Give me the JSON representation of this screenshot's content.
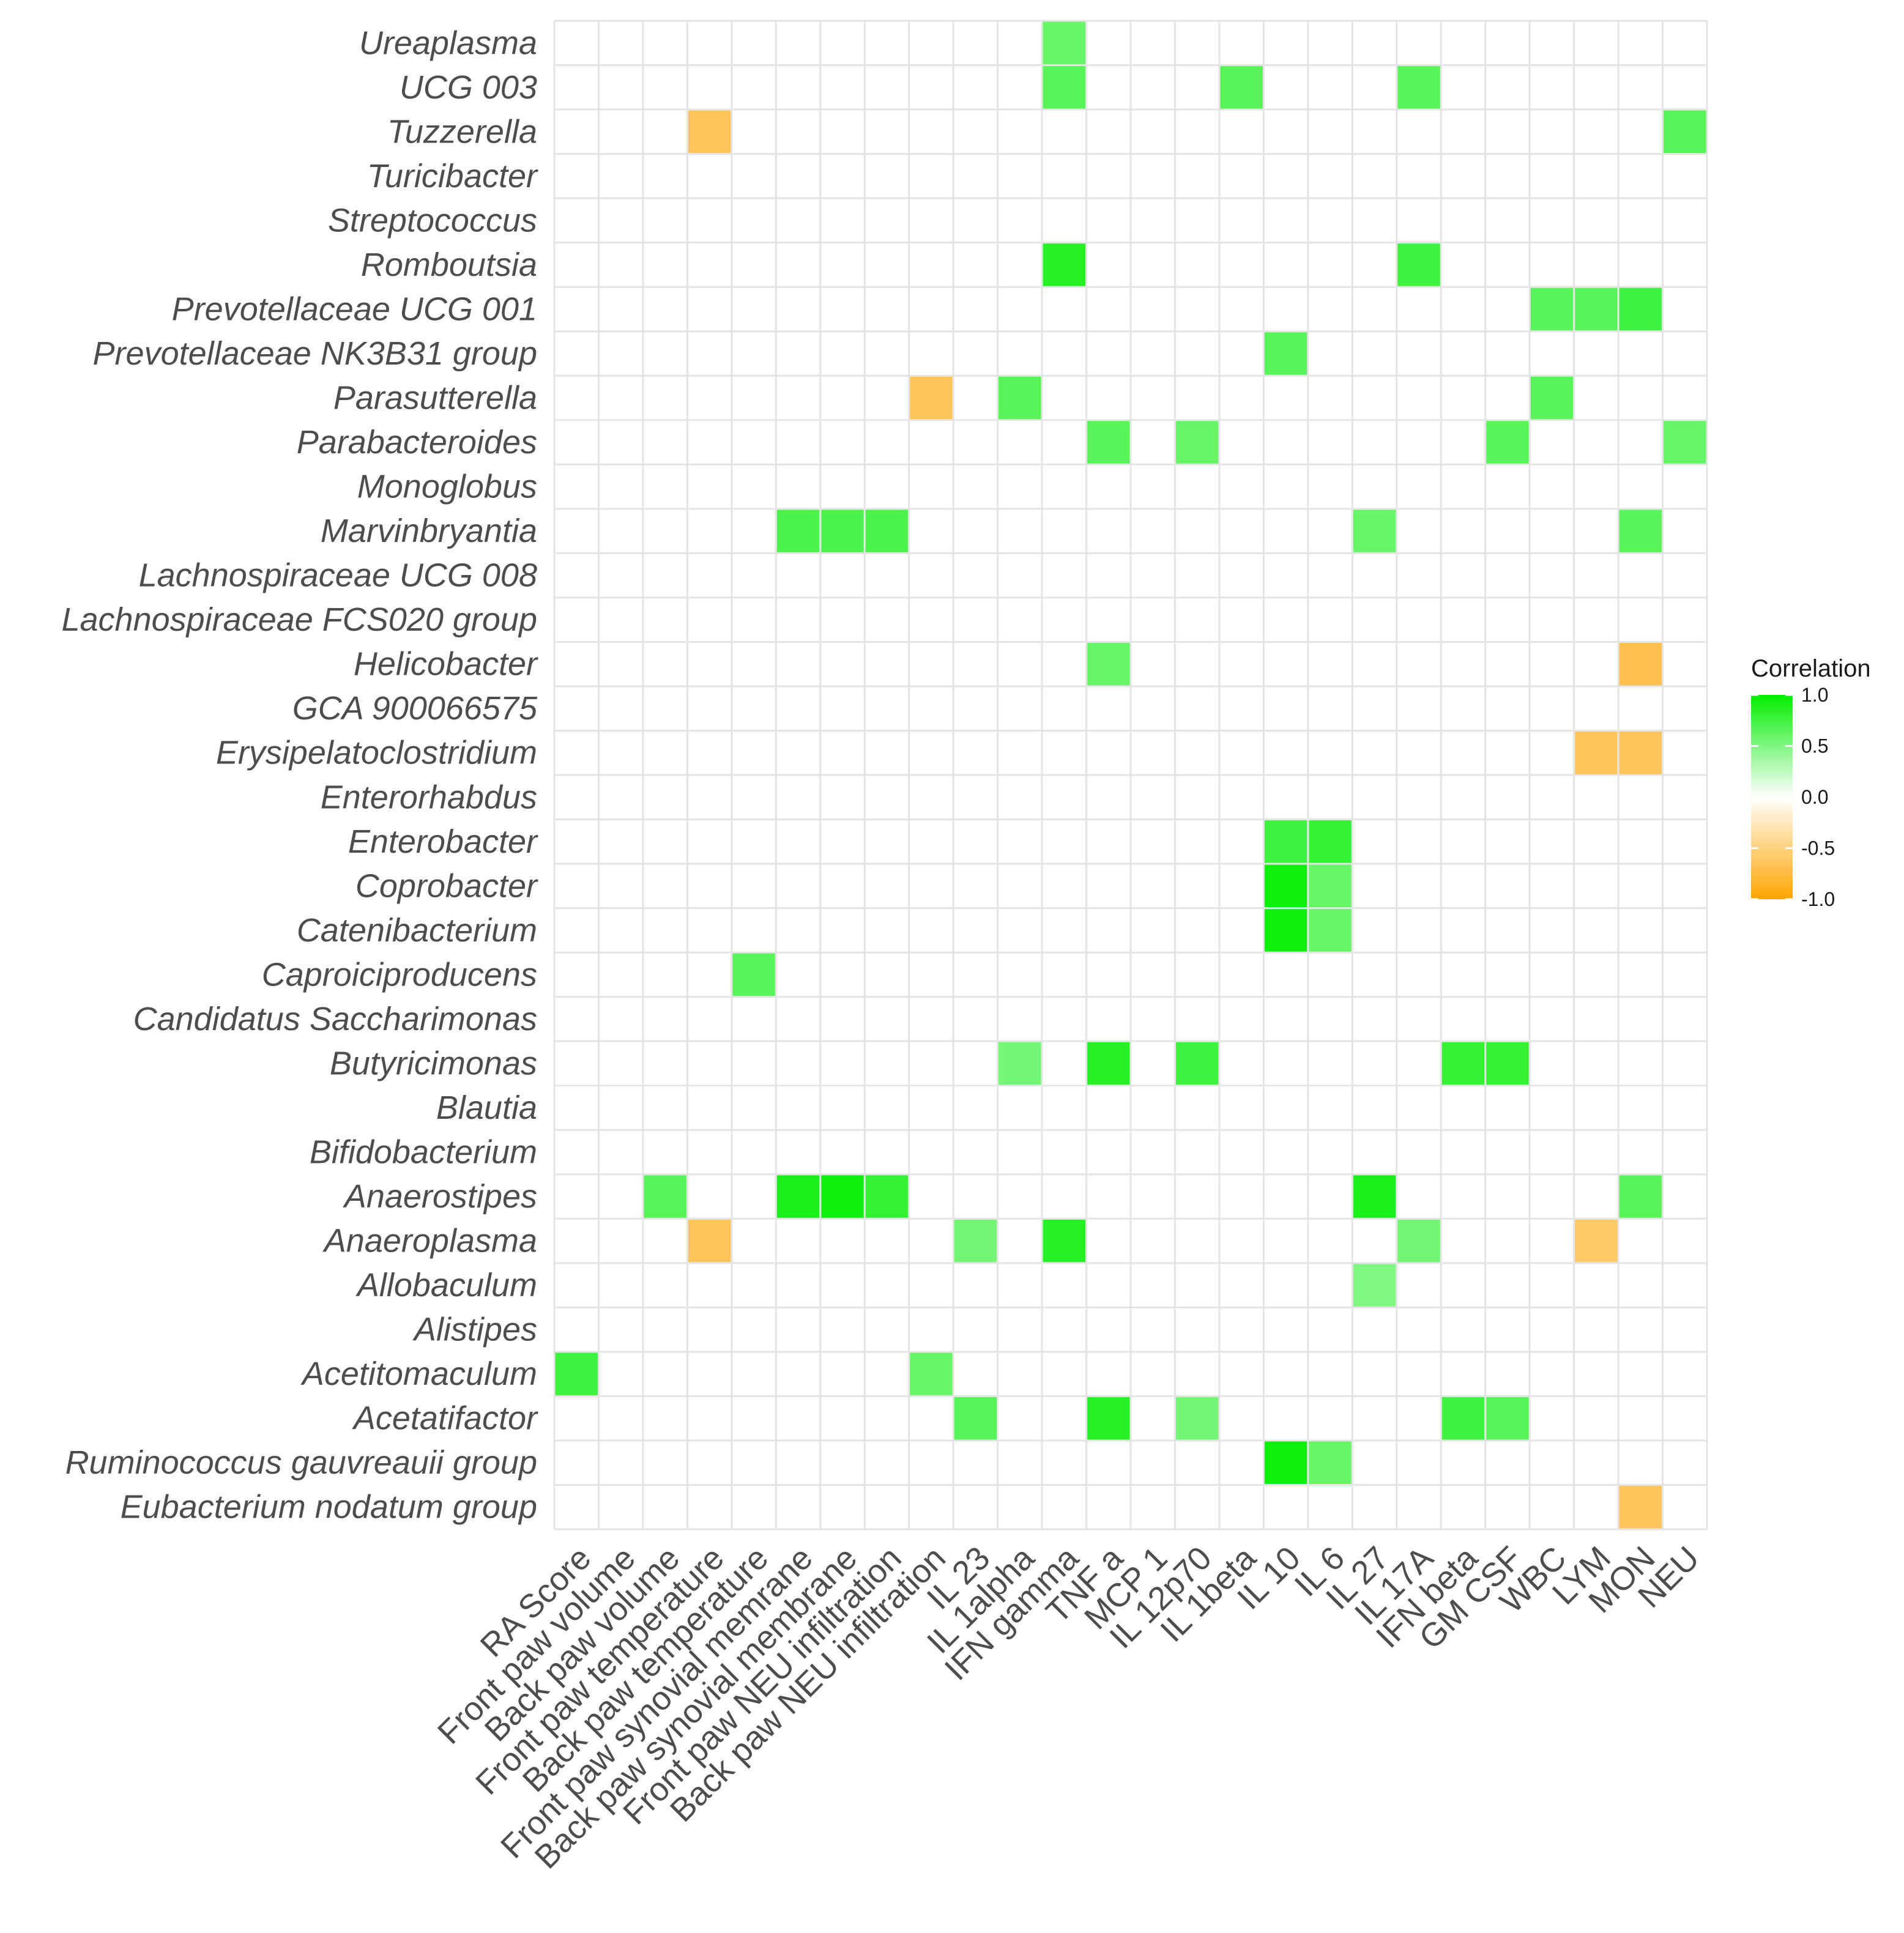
{
  "chart_data": {
    "type": "heatmap",
    "title": "",
    "xlabel": "",
    "ylabel": "",
    "x_categories": [
      "RA Score",
      "Front paw volume",
      "Back paw volume",
      "Front paw temperature",
      "Back paw temperature",
      "Front paw synovial memrane",
      "Back paw synovial membrane",
      "Front paw NEU infiltration",
      "Back paw NEU infiltration",
      "IL 23",
      "IL 1alpha",
      "IFN gamma",
      "TNF a",
      "MCP 1",
      "IL 12p70",
      "IL 1beta",
      "IL 10",
      "IL 6",
      "IL 27",
      "IL 17A",
      "IFN beta",
      "GM CSF",
      "WBC",
      "LYM",
      "MON",
      "NEU"
    ],
    "y_categories": [
      "Ureaplasma",
      "UCG 003",
      "Tuzzerella",
      "Turicibacter",
      "Streptococcus",
      "Romboutsia",
      "Prevotellaceae UCG 001",
      "Prevotellaceae NK3B31 group",
      "Parasutterella",
      "Parabacteroides",
      "Monoglobus",
      "Marvinbryantia",
      "Lachnospiraceae UCG 008",
      "Lachnospiraceae FCS020 group",
      "Helicobacter",
      "GCA 900066575",
      "Erysipelatoclostridium",
      "Enterorhabdus",
      "Enterobacter",
      "Coprobacter",
      "Catenibacterium",
      "Caproiciproducens",
      "Candidatus Saccharimonas",
      "Butyricimonas",
      "Blautia",
      "Bifidobacterium",
      "Anaerostipes",
      "Anaeroplasma",
      "Allobaculum",
      "Alistipes",
      "Acetitomaculum",
      "Acetatifactor",
      "Ruminococcus  gauvreauii group",
      "Eubacterium  nodatum group"
    ],
    "cells": [
      {
        "y": "Ureaplasma",
        "x": "IFN gamma",
        "value": 0.6
      },
      {
        "y": "UCG 003",
        "x": "IFN gamma",
        "value": 0.65
      },
      {
        "y": "UCG 003",
        "x": "IL 1beta",
        "value": 0.65
      },
      {
        "y": "UCG 003",
        "x": "IL 17A",
        "value": 0.65
      },
      {
        "y": "Tuzzerella",
        "x": "Front paw temperature",
        "value": -0.65
      },
      {
        "y": "Tuzzerella",
        "x": "NEU",
        "value": 0.65
      },
      {
        "y": "Romboutsia",
        "x": "IFN gamma",
        "value": 0.85
      },
      {
        "y": "Romboutsia",
        "x": "IL 17A",
        "value": 0.75
      },
      {
        "y": "Prevotellaceae UCG 001",
        "x": "WBC",
        "value": 0.65
      },
      {
        "y": "Prevotellaceae UCG 001",
        "x": "LYM",
        "value": 0.65
      },
      {
        "y": "Prevotellaceae UCG 001",
        "x": "MON",
        "value": 0.75
      },
      {
        "y": "Prevotellaceae NK3B31 group",
        "x": "IL 10",
        "value": 0.65
      },
      {
        "y": "Parasutterella",
        "x": "Back paw NEU infiltration",
        "value": -0.65
      },
      {
        "y": "Parasutterella",
        "x": "IL 1alpha",
        "value": 0.65
      },
      {
        "y": "Parasutterella",
        "x": "WBC",
        "value": 0.65
      },
      {
        "y": "Parabacteroides",
        "x": "TNF a",
        "value": 0.65
      },
      {
        "y": "Parabacteroides",
        "x": "IL 12p70",
        "value": 0.6
      },
      {
        "y": "Parabacteroides",
        "x": "GM CSF",
        "value": 0.65
      },
      {
        "y": "Parabacteroides",
        "x": "NEU",
        "value": 0.6
      },
      {
        "y": "Marvinbryantia",
        "x": "Front paw synovial memrane",
        "value": 0.7
      },
      {
        "y": "Marvinbryantia",
        "x": "Back paw synovial membrane",
        "value": 0.7
      },
      {
        "y": "Marvinbryantia",
        "x": "Front paw NEU infiltration",
        "value": 0.7
      },
      {
        "y": "Marvinbryantia",
        "x": "IL 27",
        "value": 0.6
      },
      {
        "y": "Marvinbryantia",
        "x": "MON",
        "value": 0.65
      },
      {
        "y": "Helicobacter",
        "x": "TNF a",
        "value": 0.6
      },
      {
        "y": "Helicobacter",
        "x": "MON",
        "value": -0.7
      },
      {
        "y": "Erysipelatoclostridium",
        "x": "LYM",
        "value": -0.65
      },
      {
        "y": "Erysipelatoclostridium",
        "x": "MON",
        "value": -0.65
      },
      {
        "y": "Enterobacter",
        "x": "IL 10",
        "value": 0.75
      },
      {
        "y": "Enterobacter",
        "x": "IL 6",
        "value": 0.8
      },
      {
        "y": "Coprobacter",
        "x": "IL 10",
        "value": 0.95
      },
      {
        "y": "Coprobacter",
        "x": "IL 6",
        "value": 0.6
      },
      {
        "y": "Catenibacterium",
        "x": "IL 10",
        "value": 0.95
      },
      {
        "y": "Catenibacterium",
        "x": "IL 6",
        "value": 0.6
      },
      {
        "y": "Caproiciproducens",
        "x": "Back paw temperature",
        "value": 0.65
      },
      {
        "y": "Butyricimonas",
        "x": "IL 1alpha",
        "value": 0.55
      },
      {
        "y": "Butyricimonas",
        "x": "TNF a",
        "value": 0.85
      },
      {
        "y": "Butyricimonas",
        "x": "IL 12p70",
        "value": 0.75
      },
      {
        "y": "Butyricimonas",
        "x": "IFN beta",
        "value": 0.8
      },
      {
        "y": "Butyricimonas",
        "x": "GM CSF",
        "value": 0.8
      },
      {
        "y": "Anaerostipes",
        "x": "Back paw volume",
        "value": 0.65
      },
      {
        "y": "Anaerostipes",
        "x": "Front paw synovial memrane",
        "value": 0.9
      },
      {
        "y": "Anaerostipes",
        "x": "Back paw synovial membrane",
        "value": 0.95
      },
      {
        "y": "Anaerostipes",
        "x": "Front paw NEU infiltration",
        "value": 0.8
      },
      {
        "y": "Anaerostipes",
        "x": "IL 27",
        "value": 0.9
      },
      {
        "y": "Anaerostipes",
        "x": "MON",
        "value": 0.65
      },
      {
        "y": "Anaeroplasma",
        "x": "Front paw temperature",
        "value": -0.65
      },
      {
        "y": "Anaeroplasma",
        "x": "IL 23",
        "value": 0.55
      },
      {
        "y": "Anaeroplasma",
        "x": "IFN gamma",
        "value": 0.85
      },
      {
        "y": "Anaeroplasma",
        "x": "IL 17A",
        "value": 0.55
      },
      {
        "y": "Anaeroplasma",
        "x": "LYM",
        "value": -0.6
      },
      {
        "y": "Allobaculum",
        "x": "IL 27",
        "value": 0.5
      },
      {
        "y": "Acetitomaculum",
        "x": "RA Score",
        "value": 0.75
      },
      {
        "y": "Acetitomaculum",
        "x": "Back paw NEU infiltration",
        "value": 0.6
      },
      {
        "y": "Acetatifactor",
        "x": "IL 23",
        "value": 0.65
      },
      {
        "y": "Acetatifactor",
        "x": "TNF a",
        "value": 0.85
      },
      {
        "y": "Acetatifactor",
        "x": "IL 12p70",
        "value": 0.55
      },
      {
        "y": "Acetatifactor",
        "x": "IFN beta",
        "value": 0.75
      },
      {
        "y": "Acetatifactor",
        "x": "GM CSF",
        "value": 0.65
      },
      {
        "y": "Ruminococcus  gauvreauii group",
        "x": "IL 10",
        "value": 0.95
      },
      {
        "y": "Ruminococcus  gauvreauii group",
        "x": "IL 6",
        "value": 0.6
      },
      {
        "y": "Eubacterium  nodatum group",
        "x": "MON",
        "value": -0.65
      }
    ],
    "legend": {
      "title": "Correlation",
      "ticks": [
        "1.0",
        "0.5",
        "0.0",
        "-0.5",
        "-1.0"
      ],
      "range": [
        -1.0,
        1.0
      ],
      "placement": "right"
    },
    "colors": {
      "high": "#00ee00",
      "mid": "#ffffff",
      "low": "#ffa500",
      "grid": "#e4e4e4"
    }
  }
}
